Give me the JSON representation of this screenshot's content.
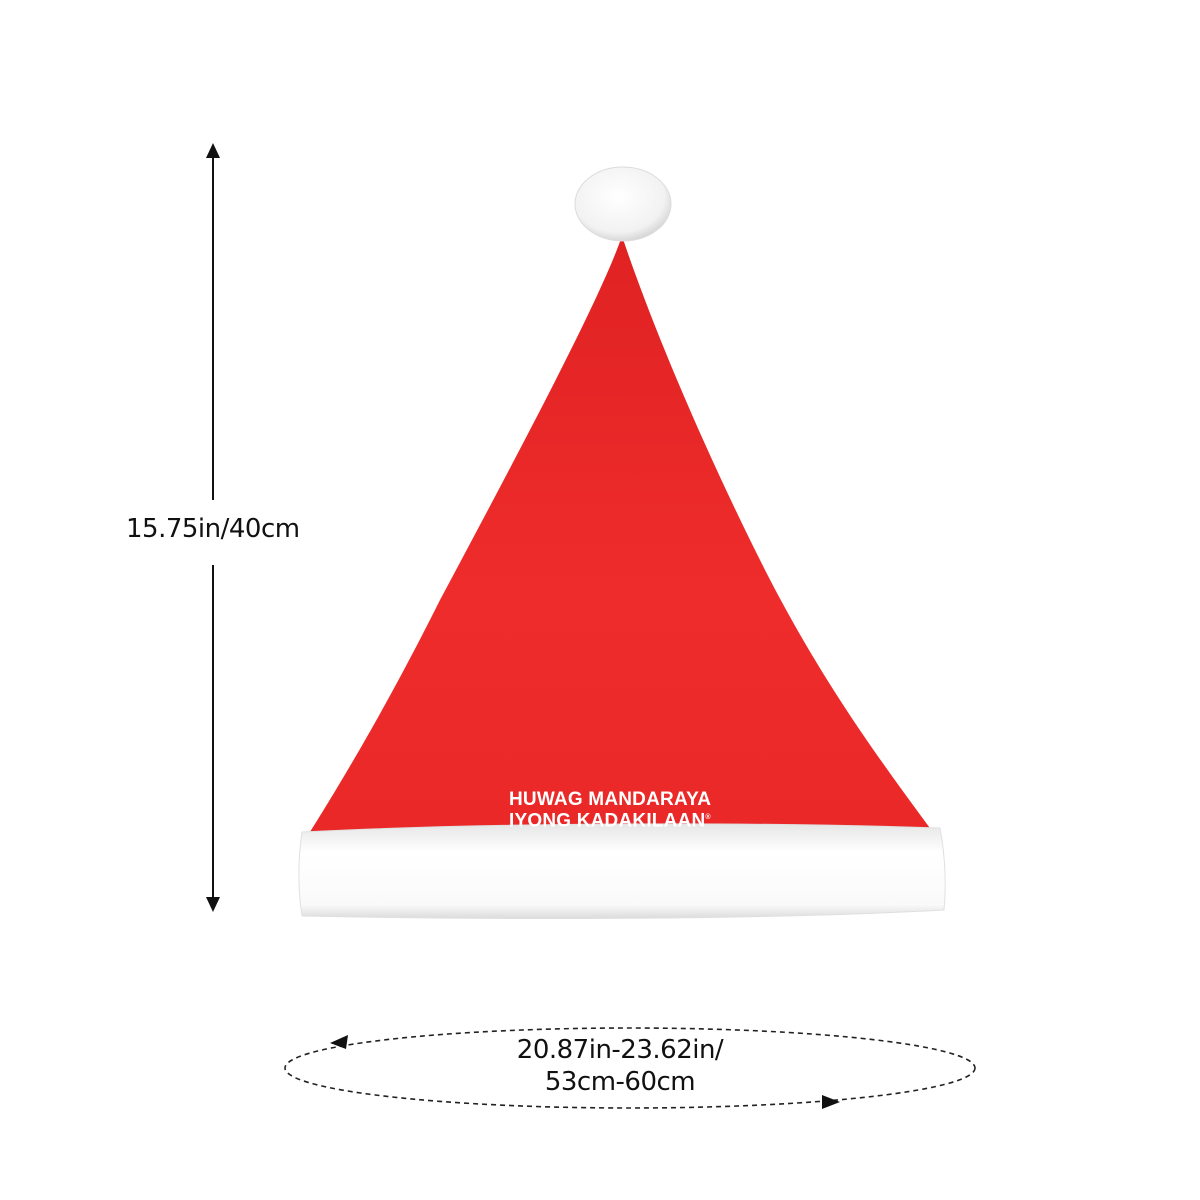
{
  "product": {
    "height_label": "15.75in/40cm",
    "circumference_line1": "20.87in-23.62in/",
    "circumference_line2": "53cm-60cm",
    "print_text_line1": "HUWAG MANDARAYA",
    "print_text_line2": "IYONG KADAKILAAN",
    "registered_mark": "®"
  },
  "colors": {
    "hat_red": "#ee2b2b",
    "trim_white": "#ffffff",
    "dimension_lines": "#111111"
  }
}
